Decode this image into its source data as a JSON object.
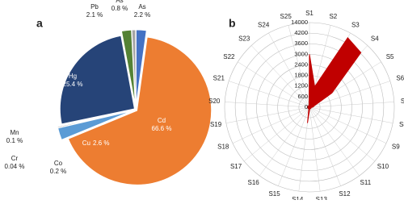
{
  "chart_data": [
    {
      "type": "pie",
      "panel_label": "a",
      "categories": [
        "As",
        "Cd",
        "Cu",
        "Co",
        "Cr",
        "Mn",
        "Hg",
        "Pb",
        "As"
      ],
      "values": [
        2.2,
        66.6,
        2.6,
        0.2,
        0.04,
        0.1,
        25.4,
        2.1,
        0.8
      ],
      "value_labels": [
        "2.2 %",
        "66.6 %",
        "2.6 %",
        "0.2 %",
        "0.04 %",
        "0.1 %",
        "25.4 %",
        "2.1 %",
        "0.8 %"
      ],
      "colors": [
        "#4472c4",
        "#ed7d31",
        "#5b9bd5",
        "#7f7f7f",
        "#c00000",
        "#a5a5a5",
        "#264478",
        "#548235",
        "#a5a5a5"
      ]
    },
    {
      "type": "radar",
      "panel_label": "b",
      "categories": [
        "S1",
        "S2",
        "S3",
        "S4",
        "S5",
        "S6",
        "S7",
        "S8",
        "S9",
        "S10",
        "S11",
        "S12",
        "S13",
        "S14",
        "S15",
        "S16",
        "S17",
        "S18",
        "S19",
        "S20",
        "S21",
        "S22",
        "S23",
        "S24",
        "S25"
      ],
      "values": [
        3000,
        1200,
        9000,
        5000,
        1500,
        300,
        200,
        100,
        100,
        100,
        100,
        100,
        100,
        900,
        100,
        100,
        100,
        100,
        100,
        100,
        100,
        100,
        100,
        100,
        100
      ],
      "color": "#c00000",
      "rticks": [
        0,
        600,
        1200,
        1800,
        2400,
        3000,
        3600,
        4200,
        14000
      ]
    }
  ]
}
